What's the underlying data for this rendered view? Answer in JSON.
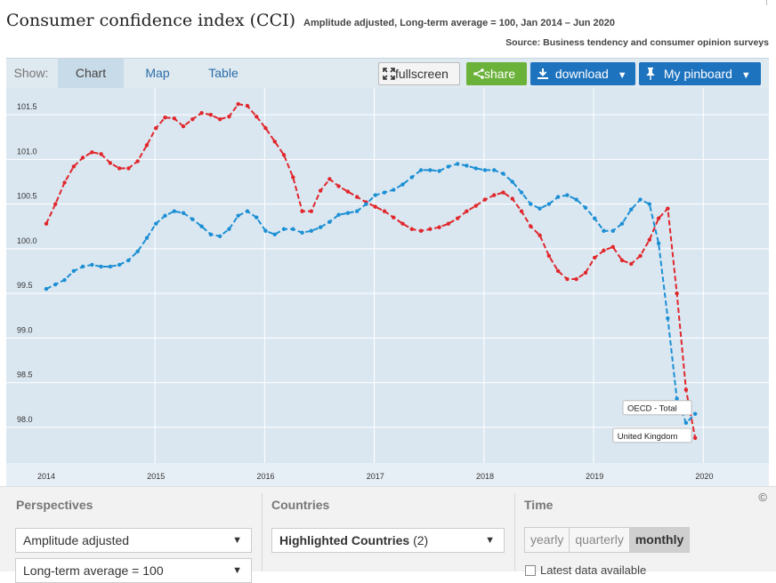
{
  "header": {
    "title": "Consumer confidence index (CCI)",
    "subtitle": "Amplitude adjusted, Long-term average = 100, Jan 2014 – Jun 2020",
    "source": "Source: Business tendency and consumer opinion surveys"
  },
  "toolbar": {
    "show_label": "Show:",
    "tabs": [
      "Chart",
      "Map",
      "Table"
    ],
    "fullscreen": "fullscreen",
    "share": "share",
    "download": "download",
    "pinboard": "My pinboard"
  },
  "icons": [
    "expand-icon",
    "share-icon",
    "download-icon",
    "pin-icon",
    "caret-down-icon"
  ],
  "colors": {
    "oecd": "#1c8fd4",
    "uk": "#e0272c",
    "plot_bg": "#dae7f1",
    "accent": "#1e73be",
    "share_green": "#6bb23a"
  },
  "chart_data": {
    "type": "line",
    "x_start": "2014-01",
    "x_step": "month",
    "ylim": [
      97.6,
      101.8
    ],
    "yticks": [
      98.0,
      98.5,
      99.0,
      99.5,
      100.0,
      100.5,
      101.0,
      101.5
    ],
    "ytick_labels": [
      "98.0",
      "98.5",
      "99.0",
      "99.5",
      "100.0",
      "100.5",
      "101.0",
      "101.5"
    ],
    "xtick_labels": [
      "2014",
      "2015",
      "2016",
      "2017",
      "2018",
      "2019",
      "2020"
    ],
    "grid": true,
    "series": [
      {
        "name": "OECD - Total",
        "values": [
          99.55,
          99.6,
          99.65,
          99.75,
          99.8,
          99.82,
          99.8,
          99.8,
          99.82,
          99.87,
          99.97,
          100.12,
          100.28,
          100.37,
          100.42,
          100.4,
          100.33,
          100.25,
          100.16,
          100.14,
          100.22,
          100.37,
          100.42,
          100.35,
          100.2,
          100.16,
          100.22,
          100.22,
          100.18,
          100.2,
          100.24,
          100.3,
          100.38,
          100.4,
          100.42,
          100.5,
          100.6,
          100.63,
          100.66,
          100.72,
          100.8,
          100.88,
          100.88,
          100.87,
          100.92,
          100.95,
          100.93,
          100.9,
          100.88,
          100.88,
          100.84,
          100.75,
          100.63,
          100.5,
          100.45,
          100.5,
          100.58,
          100.6,
          100.55,
          100.46,
          100.34,
          100.2,
          100.2,
          100.28,
          100.44,
          100.55,
          100.5,
          100.06,
          99.22,
          98.32,
          98.05,
          98.15
        ]
      },
      {
        "name": "United Kingdom",
        "values": [
          100.28,
          100.5,
          100.74,
          100.92,
          101.02,
          101.08,
          101.06,
          100.96,
          100.9,
          100.9,
          100.98,
          101.16,
          101.35,
          101.47,
          101.46,
          101.37,
          101.45,
          101.52,
          101.5,
          101.45,
          101.48,
          101.62,
          101.6,
          101.48,
          101.35,
          101.2,
          101.05,
          100.8,
          100.42,
          100.42,
          100.65,
          100.78,
          100.7,
          100.64,
          100.58,
          100.52,
          100.47,
          100.42,
          100.35,
          100.28,
          100.22,
          100.2,
          100.22,
          100.24,
          100.28,
          100.34,
          100.42,
          100.48,
          100.55,
          100.6,
          100.63,
          100.56,
          100.42,
          100.25,
          100.15,
          99.92,
          99.75,
          99.66,
          99.66,
          99.73,
          99.9,
          99.98,
          100.02,
          99.87,
          99.83,
          99.92,
          100.1,
          100.34,
          100.45,
          99.5,
          98.42,
          97.88
        ]
      }
    ],
    "end_labels": [
      "OECD - Total",
      "United Kingdom"
    ]
  },
  "controls": {
    "copyright": "©",
    "perspectives": {
      "label": "Perspectives",
      "select1": "Amplitude adjusted",
      "select2": "Long-term average = 100"
    },
    "countries": {
      "label": "Countries",
      "select_bold": "Highlighted Countries",
      "select_count": "(2)"
    },
    "time": {
      "label": "Time",
      "options": [
        "yearly",
        "quarterly",
        "monthly"
      ],
      "selected": "monthly",
      "checkbox_label": "Latest data available"
    }
  }
}
